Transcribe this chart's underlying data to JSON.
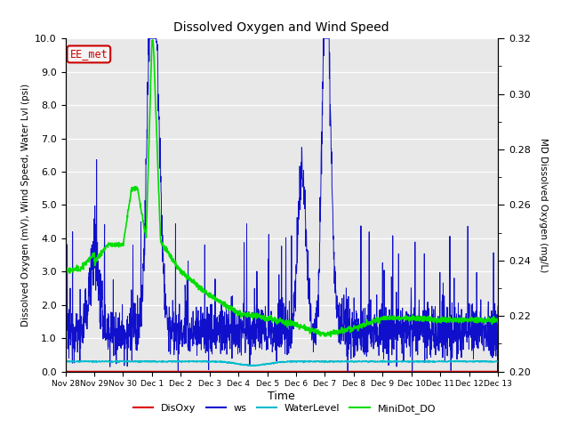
{
  "title": "Dissolved Oxygen and Wind Speed",
  "ylabel_left": "Dissolved Oxygen (mV), Wind Speed, Water Lvl (psi)",
  "ylabel_right": "MD Dissolved Oxygen (mg/L)",
  "xlabel": "Time",
  "xlim_labels": [
    "Nov 28",
    "Nov 29",
    "Nov 30",
    "Dec 1",
    "Dec 2",
    "Dec 3",
    "Dec 4",
    "Dec 5",
    "Dec 6",
    "Dec 7",
    "Dec 8",
    "Dec 9",
    "Dec 10",
    "Dec 11",
    "Dec 12",
    "Dec 13"
  ],
  "ylim_left": [
    0.0,
    10.0
  ],
  "ylim_right": [
    0.2,
    0.32
  ],
  "yticks_left": [
    0.0,
    1.0,
    2.0,
    3.0,
    4.0,
    5.0,
    6.0,
    7.0,
    8.0,
    9.0,
    10.0
  ],
  "yticks_right": [
    0.2,
    0.22,
    0.24,
    0.26,
    0.28,
    0.3,
    0.32
  ],
  "bg_color": "#e8e8e8",
  "fig_bg": "#ffffff",
  "annotation_text": "EE_met",
  "annotation_color": "#cc0000",
  "annotation_bg": "#f5f5f5",
  "colors": {
    "DisOxy": "#dd0000",
    "ws": "#1010cc",
    "WaterLevel": "#00bbcc",
    "MiniDot_DO": "#00dd00"
  },
  "legend_labels": [
    "DisOxy",
    "ws",
    "WaterLevel",
    "MiniDot_DO"
  ]
}
